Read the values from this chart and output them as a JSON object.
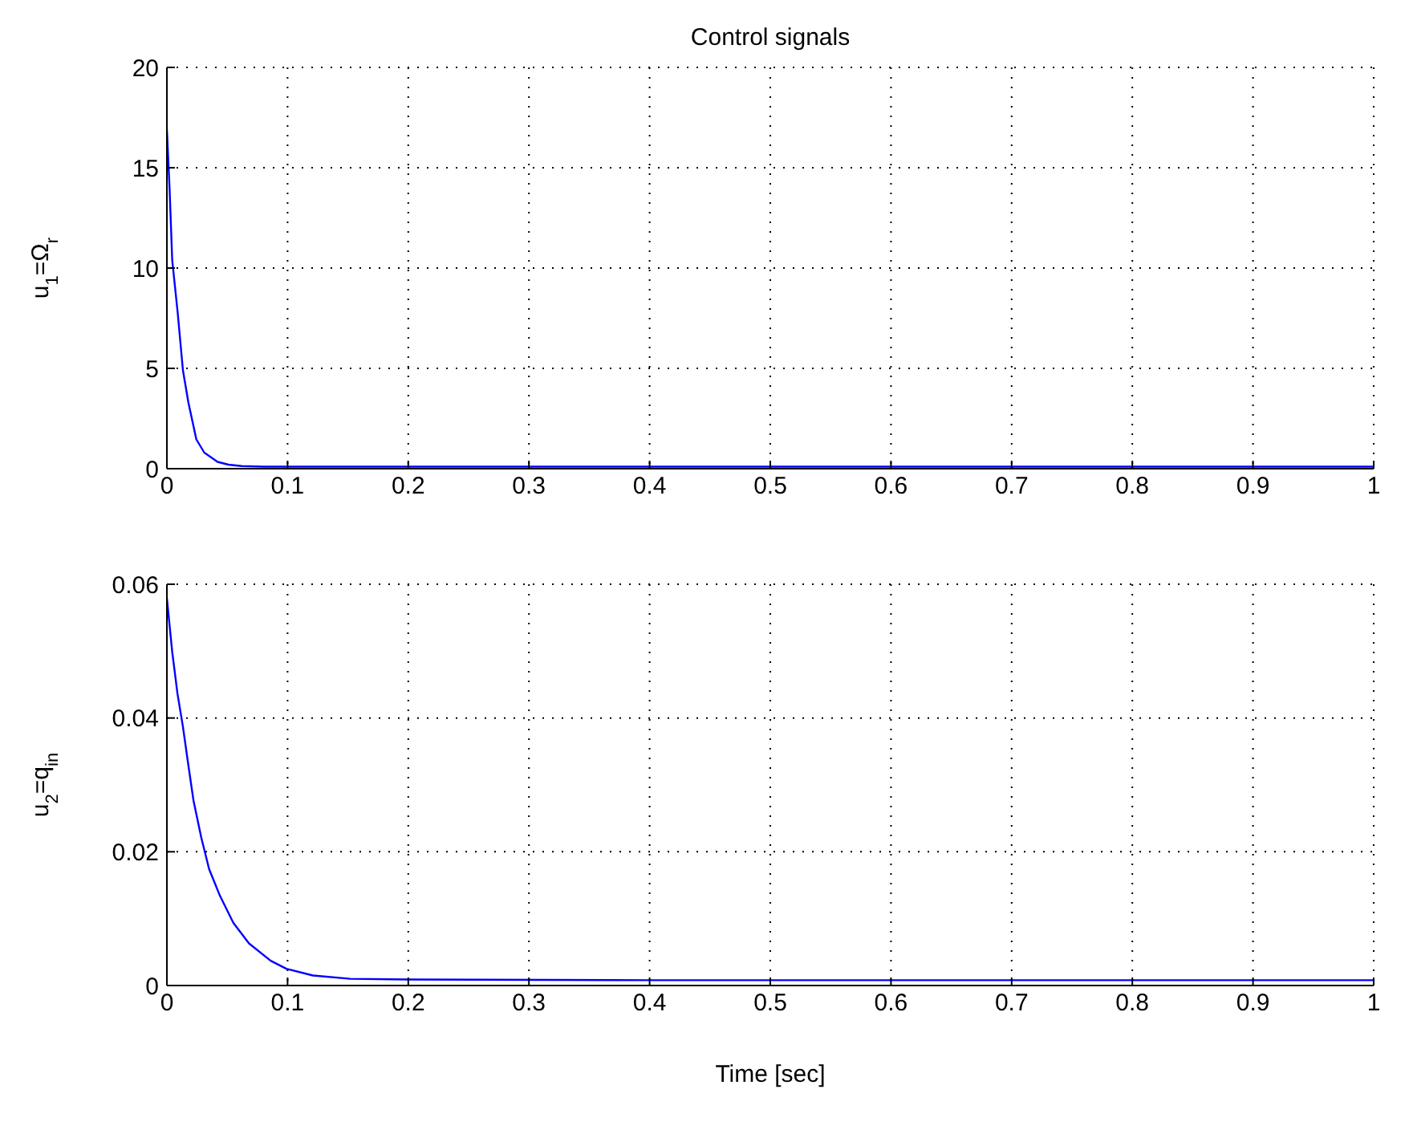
{
  "chart_data": [
    {
      "type": "line",
      "title": "Control signals",
      "ylabel": "u$_{1}$=Ω$_{r}$",
      "x": [
        0,
        0.0022,
        0.0044,
        0.0089,
        0.0133,
        0.0178,
        0.0244,
        0.031,
        0.042,
        0.051,
        0.062,
        0.08,
        0.2,
        0.4,
        0.6,
        0.8,
        1
      ],
      "series": [
        {
          "color": "#0000ff",
          "values": [
            16.9,
            14.0,
            10.4,
            7.8,
            4.9,
            3.3,
            1.46,
            0.8,
            0.34,
            0.2,
            0.13,
            0.1,
            0.1,
            0.1,
            0.1,
            0.1,
            0.1
          ]
        }
      ],
      "xlim": [
        0,
        1
      ],
      "ylim": [
        0,
        20
      ],
      "xticks": [
        0,
        0.1,
        0.2,
        0.3,
        0.4,
        0.5,
        0.6,
        0.7,
        0.8,
        0.9,
        1
      ],
      "yticks": [
        0,
        5,
        10,
        15,
        20
      ],
      "grid": true
    },
    {
      "type": "line",
      "xlabel": "Time [sec]",
      "ylabel": "u$_{2}$=q$_{in}$",
      "x": [
        0,
        0.0044,
        0.0088,
        0.0132,
        0.0175,
        0.022,
        0.0285,
        0.035,
        0.044,
        0.055,
        0.068,
        0.086,
        0.099,
        0.121,
        0.152,
        0.2,
        0.4,
        0.6,
        0.8,
        1
      ],
      "series": [
        {
          "color": "#0000ff",
          "values": [
            0.0579,
            0.0499,
            0.0436,
            0.0388,
            0.0333,
            0.0277,
            0.0221,
            0.0174,
            0.0134,
            0.0094,
            0.0063,
            0.0037,
            0.0025,
            0.0015,
            0.001,
            0.0009,
            0.0008,
            0.0008,
            0.0008,
            0.0008
          ]
        }
      ],
      "xlim": [
        0,
        1
      ],
      "ylim": [
        0,
        0.06
      ],
      "xticks": [
        0,
        0.1,
        0.2,
        0.3,
        0.4,
        0.5,
        0.6,
        0.7,
        0.8,
        0.9,
        1
      ],
      "yticks": [
        0,
        0.02,
        0.04,
        0.06
      ],
      "grid": true
    }
  ]
}
